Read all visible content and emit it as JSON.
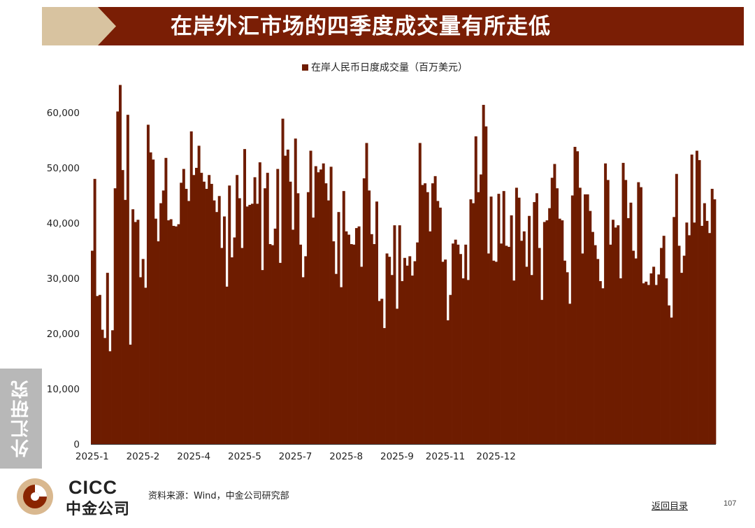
{
  "slide": {
    "title": "在岸外汇市场的四季度成交量有所走低",
    "side_tab": "外汇研究",
    "source": "资料来源：Wind，中金公司研究部",
    "back_link": "返回目录",
    "page_number": "107"
  },
  "logo": {
    "en": "CICC",
    "cn": "中金公司"
  },
  "colors": {
    "bar": "#6e1c00",
    "title_bg": "#7a1e05",
    "title_chevron": "#d8c3a0",
    "side_tab": "#b8b8b8"
  },
  "chart_data": {
    "type": "bar",
    "legend": "在岸人民币日度成交量（百万美元）",
    "ylim": [
      0,
      65000
    ],
    "yticks": [
      0,
      10000,
      20000,
      30000,
      40000,
      50000,
      60000
    ],
    "ytick_labels": [
      "0",
      "10,000",
      "20,000",
      "30,000",
      "40,000",
      "50,000",
      "60,000"
    ],
    "xtick_labels": [
      "2025-1",
      "2025-2",
      "2025-4",
      "2025-5",
      "2025-7",
      "2025-8",
      "2025-9",
      "2025-11",
      "2025-12"
    ],
    "xtick_bar_index": [
      0,
      20,
      40,
      60,
      80,
      100,
      120,
      139,
      159
    ],
    "values": [
      35000,
      48000,
      26800,
      27000,
      20700,
      19200,
      31000,
      16800,
      20600,
      46300,
      60200,
      65000,
      49600,
      44200,
      59600,
      18000,
      42500,
      40200,
      40600,
      30200,
      33500,
      28300,
      57800,
      52800,
      51500,
      40800,
      36700,
      43600,
      45900,
      51800,
      40500,
      40700,
      39500,
      39400,
      39800,
      47300,
      49800,
      46200,
      44000,
      56600,
      48700,
      50000,
      54000,
      49100,
      47500,
      46200,
      48700,
      47100,
      44100,
      42000,
      44900,
      35500,
      41200,
      28500,
      46800,
      33800,
      37400,
      48700,
      44500,
      35500,
      53400,
      43000,
      43300,
      43500,
      48300,
      43500,
      51000,
      31500,
      46300,
      49100,
      36200,
      36000,
      39000,
      49800,
      32800,
      58900,
      52200,
      53300,
      47500,
      38800,
      55300,
      45400,
      36100,
      30200,
      34000,
      45600,
      53100,
      41000,
      50300,
      49200,
      49700,
      50800,
      47200,
      44100,
      50200,
      36700,
      30800,
      42000,
      28400,
      45800,
      38500,
      37900,
      36200,
      36100,
      39100,
      39400,
      32100,
      48100,
      54500,
      45900,
      38000,
      36200,
      43900,
      25900,
      26300,
      21000,
      34500,
      33900,
      30600,
      39600,
      24500,
      39600,
      29500,
      33700,
      32300,
      34000,
      30500,
      33100,
      36500,
      54500,
      46900,
      47200,
      45600,
      38500,
      47200,
      48500,
      44000,
      42800,
      33000,
      33400,
      22400,
      27000,
      36300,
      37000,
      36100,
      34400,
      30000,
      36100,
      29700,
      44300,
      43600,
      55700,
      45600,
      48800,
      61400,
      57500,
      34500,
      44800,
      33200,
      33000,
      45300,
      36300,
      45800,
      35900,
      35700,
      41400,
      29600,
      46400,
      44600,
      36800,
      38500,
      32100,
      41300,
      30600,
      43800,
      45400,
      35500,
      26100,
      40200,
      40500,
      42700,
      48200,
      50700,
      46300,
      40800,
      40500,
      33200,
      31100,
      25400,
      45000,
      53800,
      53000,
      46400,
      34500,
      45200,
      45200,
      42200,
      38400,
      36000,
      33500,
      29500,
      28200,
      50800,
      47800,
      36100,
      40600,
      39200,
      39600,
      30000,
      50900,
      47800,
      40900,
      43700,
      35000,
      33600,
      47400,
      46500,
      29100,
      29400,
      28800,
      30900,
      32100,
      28800,
      30700,
      35500,
      37700,
      30000,
      25100,
      22900,
      41100,
      48900,
      35900,
      31000,
      34100,
      40100,
      37800,
      52400,
      40100,
      53100,
      51400,
      39500,
      43600,
      40400,
      38200,
      46200,
      44300
    ]
  }
}
